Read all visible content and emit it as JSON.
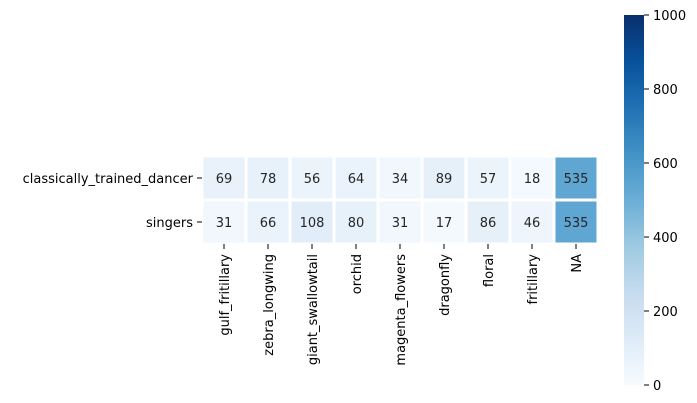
{
  "chart_data": {
    "type": "heatmap",
    "rows": [
      "classically_trained_dancer",
      "singers"
    ],
    "columns": [
      "gulf_fritillary",
      "zebra_longwing",
      "giant_swallowtail",
      "orchid",
      "magenta_flowers",
      "dragonfly",
      "floral",
      "fritillary",
      "NA"
    ],
    "values": [
      [
        69,
        78,
        56,
        64,
        34,
        89,
        57,
        18,
        535
      ],
      [
        31,
        66,
        108,
        80,
        31,
        17,
        86,
        46,
        535
      ]
    ],
    "colorbar": {
      "min": 0,
      "max": 1000,
      "ticks": [
        0,
        200,
        400,
        600,
        800,
        1000
      ],
      "colormap": "Blues",
      "colormap_stops": [
        "#f7fbff",
        "#deebf7",
        "#c6dbef",
        "#9ecae1",
        "#6baed6",
        "#4292c6",
        "#2171b5",
        "#08519c",
        "#08306b"
      ]
    },
    "title": "",
    "xlabel": "",
    "ylabel": "",
    "cell_border_color": "#ffffff",
    "annotation_dark_text": "#262626",
    "annotation_light_text": "#ffffff"
  }
}
